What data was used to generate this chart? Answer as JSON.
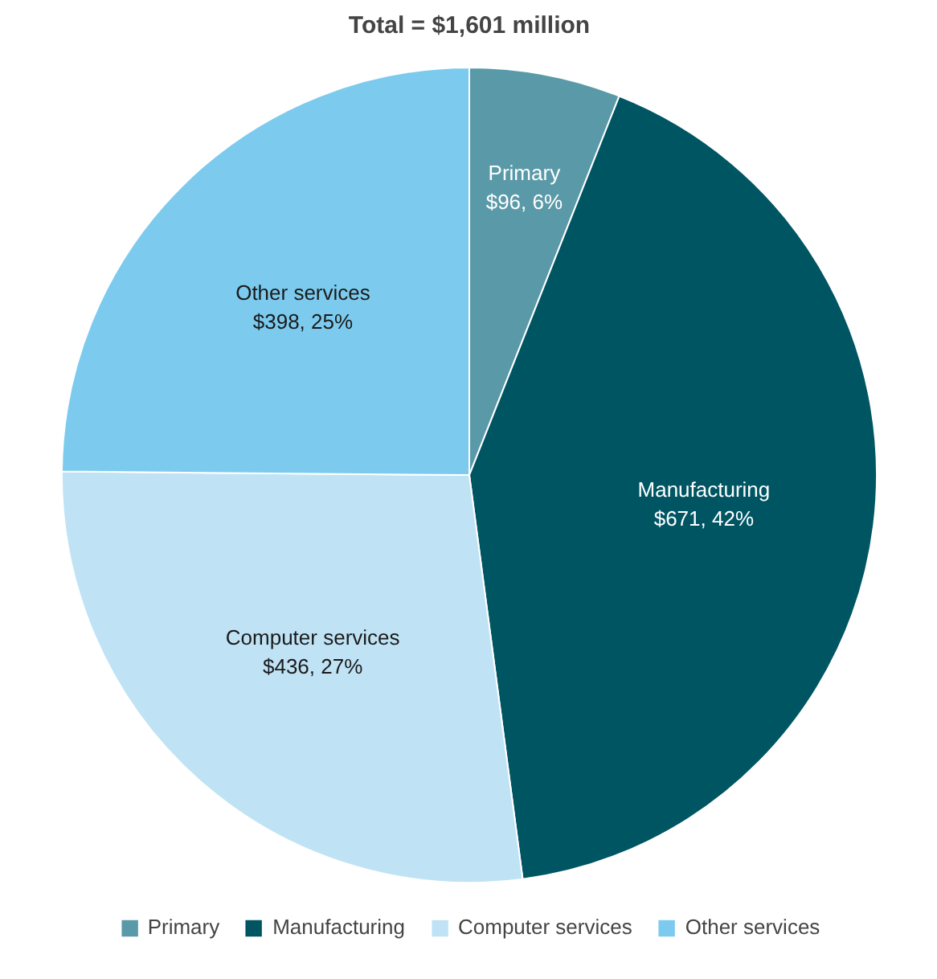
{
  "chart_data": {
    "type": "pie",
    "title": "Total = $1,601 million",
    "categories": [
      "Primary",
      "Manufacturing",
      "Computer services",
      "Other services"
    ],
    "values": [
      96,
      671,
      436,
      398
    ],
    "value_labels": [
      "$96, 6%",
      "$671, 42%",
      "$436, 27%",
      "$398, 25%"
    ],
    "colors": [
      "#5a9aa8",
      "#005563",
      "#bfe3f5",
      "#7ccbee"
    ],
    "legend": "bottom"
  }
}
